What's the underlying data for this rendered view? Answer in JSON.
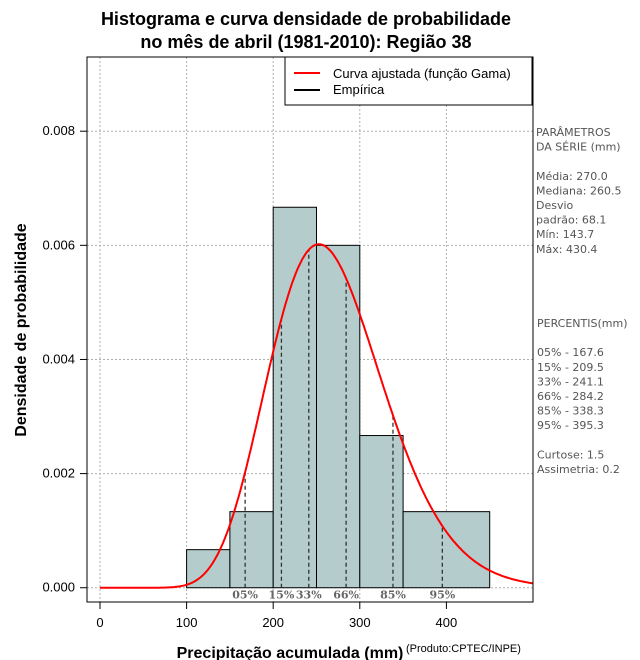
{
  "chart_data": {
    "type": "bar",
    "title": [
      "Histograma e curva densidade de probabilidade",
      "no mês de abril (1981-2010): Região 38"
    ],
    "xlabel": "Precipitação acumulada (mm)",
    "ylabel": "Densidade de probabilidade",
    "credit": "(Produto:CPTEC/INPE)",
    "xlim": [
      -15,
      500
    ],
    "ylim": [
      -0.00025,
      0.0093
    ],
    "xticks": [
      0,
      100,
      200,
      300,
      400
    ],
    "yticks": [
      0.0,
      0.002,
      0.004,
      0.006,
      0.008
    ],
    "xtick_labels": [
      "0",
      "100",
      "200",
      "300",
      "400"
    ],
    "ytick_labels": [
      "0.000",
      "0.002",
      "0.004",
      "0.006",
      "0.008"
    ],
    "grid": true,
    "bins": [
      {
        "from": 100,
        "to": 150,
        "density": 0.000667
      },
      {
        "from": 150,
        "to": 200,
        "density": 0.001333
      },
      {
        "from": 200,
        "to": 250,
        "density": 0.006667
      },
      {
        "from": 250,
        "to": 300,
        "density": 0.006
      },
      {
        "from": 300,
        "to": 350,
        "density": 0.002667
      },
      {
        "from": 350,
        "to": 450,
        "density": 0.001333
      }
    ],
    "curve": {
      "name": "Curva ajustada (função Gama)",
      "distribution": "gamma",
      "mean": 270.0,
      "sd": 68.1,
      "color": "#ff0000"
    },
    "percentiles": [
      {
        "label": "05%",
        "value": 167.6
      },
      {
        "label": "15%",
        "value": 209.5
      },
      {
        "label": "33%",
        "value": 241.1
      },
      {
        "label": "66%",
        "value": 284.2
      },
      {
        "label": "85%",
        "value": 338.3
      },
      {
        "label": "95%",
        "value": 395.3
      }
    ],
    "legend": {
      "position": "top-right",
      "entries": [
        {
          "label": "Curva ajustada (função Gama)",
          "color": "#ff0000"
        },
        {
          "label": "Empírica",
          "color": "#000000"
        }
      ]
    },
    "bar_color": "#b4cccc"
  },
  "side_panel": {
    "params_lines": [
      "PARÂMETROS",
      " DA SÉRIE (mm)",
      "",
      "Média:  270.0",
      "Mediana:  260.5",
      "Desvio",
      "padrão:  68.1",
      "Mín:  143.7",
      "Máx:  430.4"
    ],
    "percentis_lines": [
      " PERCENTIS(mm)",
      "",
      "05% -  167.6",
      "15% -  209.5",
      "33% -  241.1",
      "66% -  284.2",
      "85% -  338.3",
      "95% -  395.3",
      "",
      "Curtose:  1.5",
      "Assimetria:  0.2"
    ]
  }
}
